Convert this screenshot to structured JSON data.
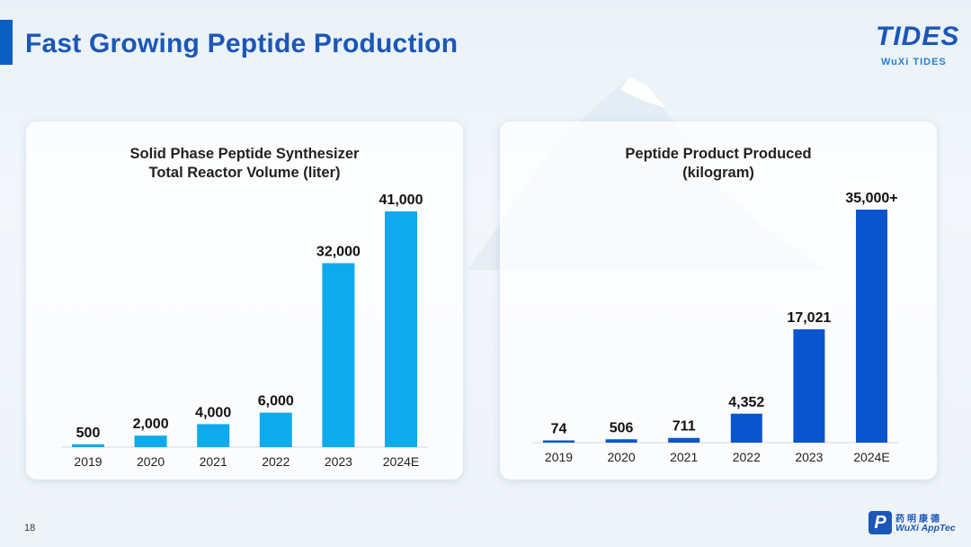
{
  "slide": {
    "title": "Fast Growing Peptide Production",
    "page_number": "18",
    "logo_top": {
      "word": "TIDES",
      "sub": "WuXi TIDES"
    },
    "logo_bottom": {
      "mark": "P",
      "cn": "药明康德",
      "en": "WuXi AppTec"
    }
  },
  "colors": {
    "title": "#1a57b8",
    "left_bars": "#0eaaed",
    "right_bars": "#0a55cf",
    "accent": "#0a5fc2"
  },
  "chart_data": [
    {
      "type": "bar",
      "title_lines": [
        "Solid Phase Peptide Synthesizer",
        "Total Reactor Volume (liter)"
      ],
      "categories": [
        "2019",
        "2020",
        "2021",
        "2022",
        "2023",
        "2024E"
      ],
      "values": [
        500,
        2000,
        4000,
        6000,
        32000,
        41000
      ],
      "data_labels": [
        "500",
        "2,000",
        "4,000",
        "6,000",
        "32,000",
        "41,000"
      ],
      "ylim": [
        0,
        41000
      ],
      "grid": false,
      "legend": "none"
    },
    {
      "type": "bar",
      "title_lines": [
        "Peptide Product Produced",
        "(kilogram)"
      ],
      "categories": [
        "2019",
        "2020",
        "2021",
        "2022",
        "2023",
        "2024E"
      ],
      "values": [
        74,
        506,
        711,
        4352,
        17021,
        35000
      ],
      "data_labels": [
        "74",
        "506",
        "711",
        "4,352",
        "17,021",
        "35,000+"
      ],
      "ylim": [
        0,
        35000
      ],
      "grid": false,
      "legend": "none"
    }
  ]
}
